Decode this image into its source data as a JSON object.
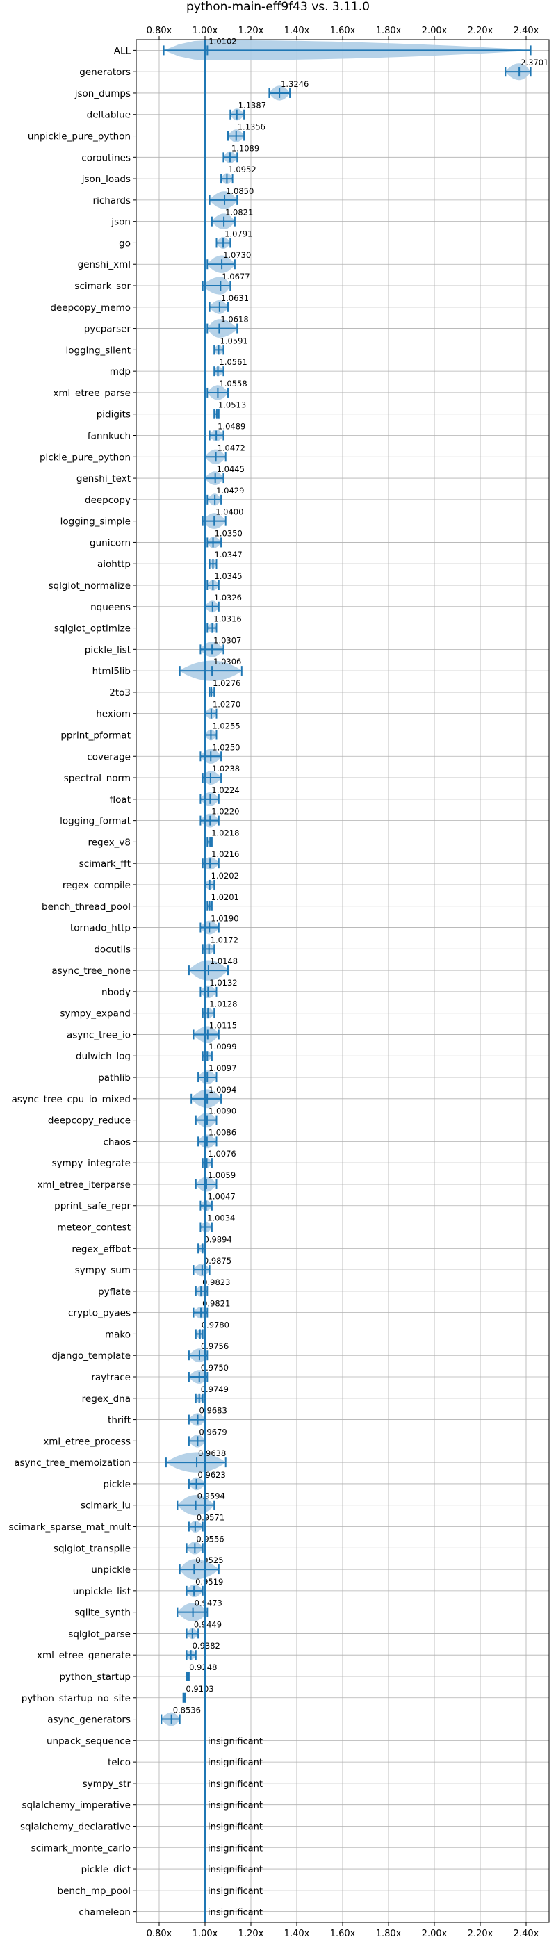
{
  "chart_data": {
    "type": "violin",
    "title": "python-main-eff9f43 vs. 3.11.0",
    "xlim": [
      0.7,
      2.5
    ],
    "xticks": [
      "0.80x",
      "1.00x",
      "1.20x",
      "1.40x",
      "1.60x",
      "1.80x",
      "2.00x",
      "2.20x",
      "2.40x"
    ],
    "xtick_values": [
      0.8,
      1.0,
      1.2,
      1.4,
      1.6,
      1.8,
      2.0,
      2.2,
      2.4
    ],
    "reference_line": 1.0,
    "grid": true,
    "color": "#1f77b4",
    "violin_color": "#aecde6",
    "benchmarks": [
      {
        "name": "ALL",
        "label": "1.0102",
        "value": 1.0102,
        "min": 0.82,
        "max": 2.42
      },
      {
        "name": "generators",
        "label": "2.3701",
        "value": 2.3701,
        "min": 2.31,
        "max": 2.42
      },
      {
        "name": "json_dumps",
        "label": "1.3246",
        "value": 1.3246,
        "min": 1.28,
        "max": 1.37
      },
      {
        "name": "deltablue",
        "label": "1.1387",
        "value": 1.1387,
        "min": 1.11,
        "max": 1.17
      },
      {
        "name": "unpickle_pure_python",
        "label": "1.1356",
        "value": 1.1356,
        "min": 1.1,
        "max": 1.17
      },
      {
        "name": "coroutines",
        "label": "1.1089",
        "value": 1.1089,
        "min": 1.08,
        "max": 1.14
      },
      {
        "name": "json_loads",
        "label": "1.0952",
        "value": 1.0952,
        "min": 1.07,
        "max": 1.12
      },
      {
        "name": "richards",
        "label": "1.0850",
        "value": 1.085,
        "min": 1.02,
        "max": 1.14
      },
      {
        "name": "json",
        "label": "1.0821",
        "value": 1.0821,
        "min": 1.03,
        "max": 1.13
      },
      {
        "name": "go",
        "label": "1.0791",
        "value": 1.0791,
        "min": 1.05,
        "max": 1.11
      },
      {
        "name": "genshi_xml",
        "label": "1.0730",
        "value": 1.073,
        "min": 1.01,
        "max": 1.13
      },
      {
        "name": "scimark_sor",
        "label": "1.0677",
        "value": 1.0677,
        "min": 0.99,
        "max": 1.11
      },
      {
        "name": "deepcopy_memo",
        "label": "1.0631",
        "value": 1.0631,
        "min": 1.02,
        "max": 1.1
      },
      {
        "name": "pycparser",
        "label": "1.0618",
        "value": 1.0618,
        "min": 1.01,
        "max": 1.14
      },
      {
        "name": "logging_silent",
        "label": "1.0591",
        "value": 1.0591,
        "min": 1.04,
        "max": 1.08
      },
      {
        "name": "mdp",
        "label": "1.0561",
        "value": 1.0561,
        "min": 1.04,
        "max": 1.08
      },
      {
        "name": "xml_etree_parse",
        "label": "1.0558",
        "value": 1.0558,
        "min": 1.01,
        "max": 1.1
      },
      {
        "name": "pidigits",
        "label": "1.0513",
        "value": 1.0513,
        "min": 1.04,
        "max": 1.06
      },
      {
        "name": "fannkuch",
        "label": "1.0489",
        "value": 1.0489,
        "min": 1.02,
        "max": 1.08
      },
      {
        "name": "pickle_pure_python",
        "label": "1.0472",
        "value": 1.0472,
        "min": 1.0,
        "max": 1.09
      },
      {
        "name": "genshi_text",
        "label": "1.0445",
        "value": 1.0445,
        "min": 1.0,
        "max": 1.08
      },
      {
        "name": "deepcopy",
        "label": "1.0429",
        "value": 1.0429,
        "min": 1.01,
        "max": 1.07
      },
      {
        "name": "logging_simple",
        "label": "1.0400",
        "value": 1.04,
        "min": 0.99,
        "max": 1.09
      },
      {
        "name": "gunicorn",
        "label": "1.0350",
        "value": 1.035,
        "min": 1.01,
        "max": 1.07
      },
      {
        "name": "aiohttp",
        "label": "1.0347",
        "value": 1.0347,
        "min": 1.02,
        "max": 1.05
      },
      {
        "name": "sqlglot_normalize",
        "label": "1.0345",
        "value": 1.0345,
        "min": 1.01,
        "max": 1.06
      },
      {
        "name": "nqueens",
        "label": "1.0326",
        "value": 1.0326,
        "min": 1.0,
        "max": 1.06
      },
      {
        "name": "sqlglot_optimize",
        "label": "1.0316",
        "value": 1.0316,
        "min": 1.01,
        "max": 1.05
      },
      {
        "name": "pickle_list",
        "label": "1.0307",
        "value": 1.0307,
        "min": 0.98,
        "max": 1.08
      },
      {
        "name": "html5lib",
        "label": "1.0306",
        "value": 1.0306,
        "min": 0.89,
        "max": 1.16
      },
      {
        "name": "2to3",
        "label": "1.0276",
        "value": 1.0276,
        "min": 1.02,
        "max": 1.04
      },
      {
        "name": "hexiom",
        "label": "1.0270",
        "value": 1.027,
        "min": 1.0,
        "max": 1.05
      },
      {
        "name": "pprint_pformat",
        "label": "1.0255",
        "value": 1.0255,
        "min": 1.0,
        "max": 1.05
      },
      {
        "name": "coverage",
        "label": "1.0250",
        "value": 1.025,
        "min": 0.98,
        "max": 1.07
      },
      {
        "name": "spectral_norm",
        "label": "1.0238",
        "value": 1.0238,
        "min": 0.99,
        "max": 1.07
      },
      {
        "name": "float",
        "label": "1.0224",
        "value": 1.0224,
        "min": 0.98,
        "max": 1.06
      },
      {
        "name": "logging_format",
        "label": "1.0220",
        "value": 1.022,
        "min": 0.98,
        "max": 1.06
      },
      {
        "name": "regex_v8",
        "label": "1.0218",
        "value": 1.0218,
        "min": 1.01,
        "max": 1.03
      },
      {
        "name": "scimark_fft",
        "label": "1.0216",
        "value": 1.0216,
        "min": 0.99,
        "max": 1.06
      },
      {
        "name": "regex_compile",
        "label": "1.0202",
        "value": 1.0202,
        "min": 1.0,
        "max": 1.04
      },
      {
        "name": "bench_thread_pool",
        "label": "1.0201",
        "value": 1.0201,
        "min": 1.01,
        "max": 1.03
      },
      {
        "name": "tornado_http",
        "label": "1.0190",
        "value": 1.019,
        "min": 0.98,
        "max": 1.06
      },
      {
        "name": "docutils",
        "label": "1.0172",
        "value": 1.0172,
        "min": 0.99,
        "max": 1.04
      },
      {
        "name": "async_tree_none",
        "label": "1.0148",
        "value": 1.0148,
        "min": 0.93,
        "max": 1.1
      },
      {
        "name": "nbody",
        "label": "1.0132",
        "value": 1.0132,
        "min": 0.98,
        "max": 1.05
      },
      {
        "name": "sympy_expand",
        "label": "1.0128",
        "value": 1.0128,
        "min": 0.99,
        "max": 1.04
      },
      {
        "name": "async_tree_io",
        "label": "1.0115",
        "value": 1.0115,
        "min": 0.95,
        "max": 1.06
      },
      {
        "name": "dulwich_log",
        "label": "1.0099",
        "value": 1.0099,
        "min": 0.99,
        "max": 1.03
      },
      {
        "name": "pathlib",
        "label": "1.0097",
        "value": 1.0097,
        "min": 0.97,
        "max": 1.05
      },
      {
        "name": "async_tree_cpu_io_mixed",
        "label": "1.0094",
        "value": 1.0094,
        "min": 0.94,
        "max": 1.07
      },
      {
        "name": "deepcopy_reduce",
        "label": "1.0090",
        "value": 1.009,
        "min": 0.96,
        "max": 1.05
      },
      {
        "name": "chaos",
        "label": "1.0086",
        "value": 1.0086,
        "min": 0.97,
        "max": 1.05
      },
      {
        "name": "sympy_integrate",
        "label": "1.0076",
        "value": 1.0076,
        "min": 0.99,
        "max": 1.03
      },
      {
        "name": "xml_etree_iterparse",
        "label": "1.0059",
        "value": 1.0059,
        "min": 0.96,
        "max": 1.05
      },
      {
        "name": "pprint_safe_repr",
        "label": "1.0047",
        "value": 1.0047,
        "min": 0.98,
        "max": 1.03
      },
      {
        "name": "meteor_contest",
        "label": "1.0034",
        "value": 1.0034,
        "min": 0.98,
        "max": 1.03
      },
      {
        "name": "regex_effbot",
        "label": "0.9894",
        "value": 0.9894,
        "min": 0.97,
        "max": 1.0
      },
      {
        "name": "sympy_sum",
        "label": "0.9875",
        "value": 0.9875,
        "min": 0.95,
        "max": 1.02
      },
      {
        "name": "pyflate",
        "label": "0.9823",
        "value": 0.9823,
        "min": 0.96,
        "max": 1.01
      },
      {
        "name": "crypto_pyaes",
        "label": "0.9821",
        "value": 0.9821,
        "min": 0.95,
        "max": 1.01
      },
      {
        "name": "mako",
        "label": "0.9780",
        "value": 0.978,
        "min": 0.96,
        "max": 0.99
      },
      {
        "name": "django_template",
        "label": "0.9756",
        "value": 0.9756,
        "min": 0.93,
        "max": 1.01
      },
      {
        "name": "raytrace",
        "label": "0.9750",
        "value": 0.975,
        "min": 0.93,
        "max": 1.01
      },
      {
        "name": "regex_dna",
        "label": "0.9749",
        "value": 0.9749,
        "min": 0.96,
        "max": 0.99
      },
      {
        "name": "thrift",
        "label": "0.9683",
        "value": 0.9683,
        "min": 0.93,
        "max": 1.0
      },
      {
        "name": "xml_etree_process",
        "label": "0.9679",
        "value": 0.9679,
        "min": 0.93,
        "max": 1.0
      },
      {
        "name": "async_tree_memoization",
        "label": "0.9638",
        "value": 0.9638,
        "min": 0.83,
        "max": 1.09
      },
      {
        "name": "pickle",
        "label": "0.9623",
        "value": 0.9623,
        "min": 0.93,
        "max": 1.0
      },
      {
        "name": "scimark_lu",
        "label": "0.9594",
        "value": 0.9594,
        "min": 0.88,
        "max": 1.04
      },
      {
        "name": "scimark_sparse_mat_mult",
        "label": "0.9571",
        "value": 0.9571,
        "min": 0.93,
        "max": 0.99
      },
      {
        "name": "sqlglot_transpile",
        "label": "0.9556",
        "value": 0.9556,
        "min": 0.92,
        "max": 0.99
      },
      {
        "name": "unpickle",
        "label": "0.9525",
        "value": 0.9525,
        "min": 0.89,
        "max": 1.06
      },
      {
        "name": "unpickle_list",
        "label": "0.9519",
        "value": 0.9519,
        "min": 0.92,
        "max": 0.99
      },
      {
        "name": "sqlite_synth",
        "label": "0.9473",
        "value": 0.9473,
        "min": 0.88,
        "max": 1.01
      },
      {
        "name": "sqlglot_parse",
        "label": "0.9449",
        "value": 0.9449,
        "min": 0.92,
        "max": 0.97
      },
      {
        "name": "xml_etree_generate",
        "label": "0.9382",
        "value": 0.9382,
        "min": 0.92,
        "max": 0.96
      },
      {
        "name": "python_startup",
        "label": "0.9248",
        "value": 0.9248,
        "min": 0.92,
        "max": 0.93
      },
      {
        "name": "python_startup_no_site",
        "label": "0.9103",
        "value": 0.9103,
        "min": 0.905,
        "max": 0.915
      },
      {
        "name": "async_generators",
        "label": "0.8536",
        "value": 0.8536,
        "min": 0.81,
        "max": 0.89
      },
      {
        "name": "unpack_sequence",
        "label": "insignificant"
      },
      {
        "name": "telco",
        "label": "insignificant"
      },
      {
        "name": "sympy_str",
        "label": "insignificant"
      },
      {
        "name": "sqlalchemy_imperative",
        "label": "insignificant"
      },
      {
        "name": "sqlalchemy_declarative",
        "label": "insignificant"
      },
      {
        "name": "scimark_monte_carlo",
        "label": "insignificant"
      },
      {
        "name": "pickle_dict",
        "label": "insignificant"
      },
      {
        "name": "bench_mp_pool",
        "label": "insignificant"
      },
      {
        "name": "chameleon",
        "label": "insignificant"
      }
    ]
  }
}
